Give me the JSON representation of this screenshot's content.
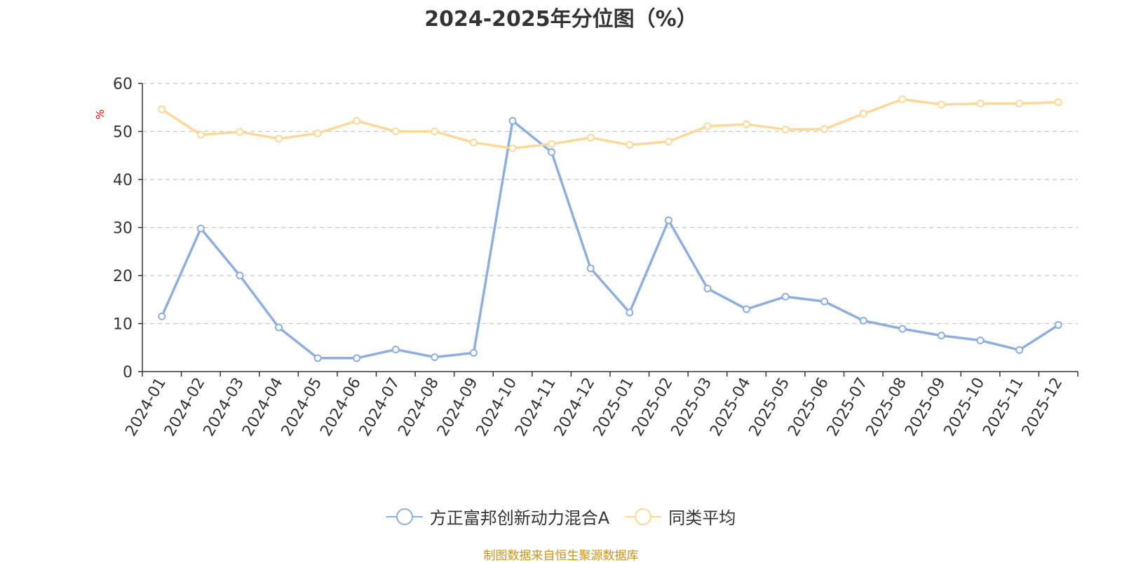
{
  "title": "2024-2025年分位图（%）",
  "source": "制图数据来自恒生聚源数据库",
  "colors": {
    "fund": "#8eaedd",
    "average": "#fdd899",
    "axis": "#333333",
    "grid": "#c8c8c8",
    "unit": "#ff0000",
    "source": "#c8941c"
  },
  "chart_data": {
    "type": "line",
    "ylabel": "%",
    "ylim": [
      0,
      60
    ],
    "yticks": [
      0,
      10,
      20,
      30,
      40,
      50,
      60
    ],
    "grid": true,
    "legend_position": "bottom",
    "categories": [
      "2024-01",
      "2024-02",
      "2024-03",
      "2024-04",
      "2024-05",
      "2024-06",
      "2024-07",
      "2024-08",
      "2024-09",
      "2024-10",
      "2024-11",
      "2024-12",
      "2025-01",
      "2025-02",
      "2025-03",
      "2025-04",
      "2025-05",
      "2025-06",
      "2025-07",
      "2025-08",
      "2025-09",
      "2025-10",
      "2025-11",
      "2025-12"
    ],
    "series": [
      {
        "name": "方正富邦创新动力混合A",
        "color": "#8eaedd",
        "values": [
          11.5,
          29.8,
          20.0,
          9.2,
          2.8,
          2.8,
          4.6,
          3.0,
          3.9,
          52.2,
          45.7,
          21.5,
          12.3,
          31.5,
          17.3,
          13.0,
          15.6,
          14.6,
          10.6,
          8.9,
          7.5,
          6.5,
          4.5,
          9.7
        ]
      },
      {
        "name": "同类平均",
        "color": "#fdd899",
        "values": [
          54.6,
          49.3,
          49.9,
          48.5,
          49.6,
          52.2,
          50.0,
          50.0,
          47.7,
          46.5,
          47.4,
          48.7,
          47.2,
          47.9,
          51.1,
          51.5,
          50.4,
          50.5,
          53.7,
          56.7,
          55.6,
          55.8,
          55.8,
          56.1
        ]
      }
    ]
  }
}
